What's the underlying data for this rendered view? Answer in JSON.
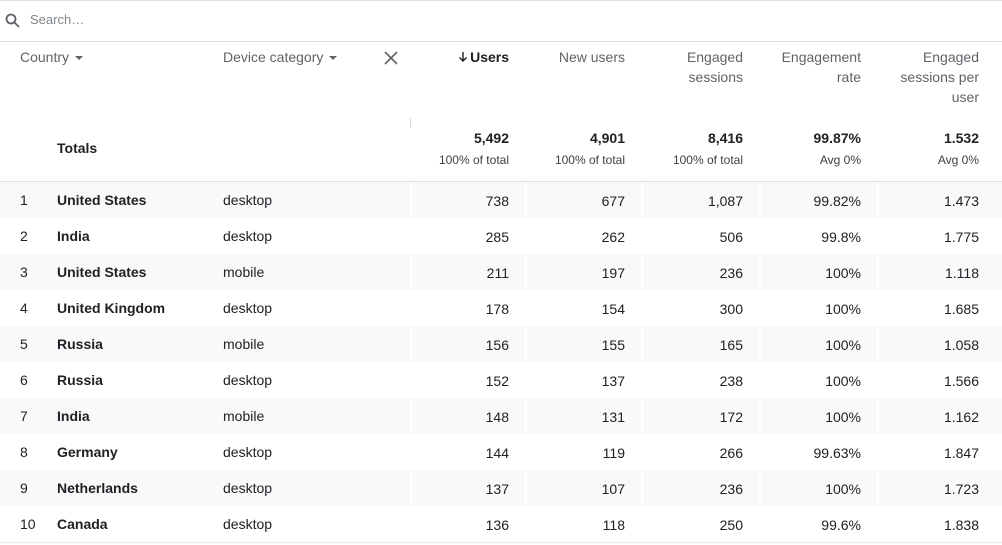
{
  "search": {
    "placeholder": "Search…"
  },
  "table": {
    "columns": [
      "Country",
      "Device category",
      "Users",
      "New users",
      "Engaged sessions",
      "Engagement rate",
      "Engaged sessions per user"
    ],
    "totals": {
      "label": "Totals",
      "values": [
        {
          "value": "5,492",
          "sub": "100% of total"
        },
        {
          "value": "4,901",
          "sub": "100% of total"
        },
        {
          "value": "8,416",
          "sub": "100% of total"
        },
        {
          "value": "99.87%",
          "sub": "Avg 0%"
        },
        {
          "value": "1.532",
          "sub": "Avg 0%"
        }
      ]
    },
    "rows": [
      [
        "1",
        "United States",
        "desktop",
        "738",
        "677",
        "1,087",
        "99.82%",
        "1.473"
      ],
      [
        "2",
        "India",
        "desktop",
        "285",
        "262",
        "506",
        "99.8%",
        "1.775"
      ],
      [
        "3",
        "United States",
        "mobile",
        "211",
        "197",
        "236",
        "100%",
        "1.118"
      ],
      [
        "4",
        "United Kingdom",
        "desktop",
        "178",
        "154",
        "300",
        "100%",
        "1.685"
      ],
      [
        "5",
        "Russia",
        "mobile",
        "156",
        "155",
        "165",
        "100%",
        "1.058"
      ],
      [
        "6",
        "Russia",
        "desktop",
        "152",
        "137",
        "238",
        "100%",
        "1.566"
      ],
      [
        "7",
        "India",
        "mobile",
        "148",
        "131",
        "172",
        "100%",
        "1.162"
      ],
      [
        "8",
        "Germany",
        "desktop",
        "144",
        "119",
        "266",
        "99.63%",
        "1.847"
      ],
      [
        "9",
        "Netherlands",
        "desktop",
        "137",
        "107",
        "236",
        "100%",
        "1.723"
      ],
      [
        "10",
        "Canada",
        "desktop",
        "136",
        "118",
        "250",
        "99.6%",
        "1.838"
      ]
    ]
  }
}
